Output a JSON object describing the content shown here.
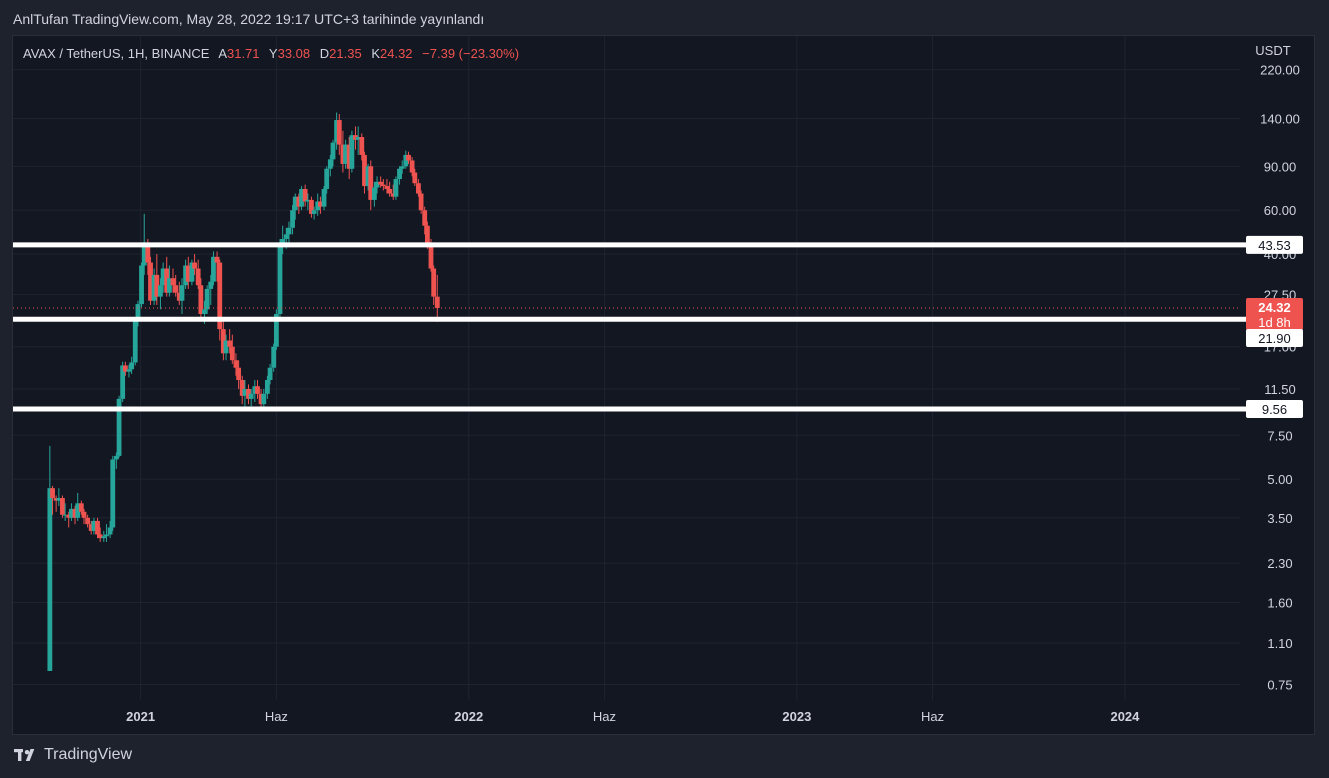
{
  "header": {
    "publish_text": "AnlTufan TradingView.com, May 28, 2022 19:17 UTC+3 tarihinde yayınlandı"
  },
  "legend": {
    "symbol": "AVAX / TetherUS, 1H, BINANCE",
    "open_label": "A",
    "open_value": "31.71",
    "high_label": "Y",
    "high_value": "33.08",
    "low_label": "D",
    "low_value": "21.35",
    "close_label": "K",
    "close_value": "24.32",
    "change": "−7.39 (−23.30%)"
  },
  "footer": {
    "brand": "TradingView"
  },
  "colors": {
    "up": "#26a69a",
    "down": "#ef5350",
    "background": "#131722",
    "grid": "#1f2330",
    "text": "#d1d4dc",
    "level_line": "#ffffff"
  },
  "chart_data": {
    "type": "candlestick",
    "currency": "USDT",
    "y_scale": "log",
    "ylim": [
      0.65,
      300
    ],
    "y_ticks": [
      "220.00",
      "140.00",
      "90.00",
      "60.00",
      "40.00",
      "27.50",
      "17.00",
      "11.50",
      "7.50",
      "5.00",
      "3.50",
      "2.30",
      "1.60",
      "1.10",
      "0.75"
    ],
    "x_ticks": [
      {
        "date": "2021-01-01",
        "label": "2021",
        "bold": true
      },
      {
        "date": "2021-06-01",
        "label": "Haz",
        "bold": false
      },
      {
        "date": "2022-01-01",
        "label": "2022",
        "bold": true
      },
      {
        "date": "2022-06-01",
        "label": "Haz",
        "bold": false
      },
      {
        "date": "2023-01-01",
        "label": "2023",
        "bold": true
      },
      {
        "date": "2023-06-01",
        "label": "Haz",
        "bold": false
      },
      {
        "date": "2024-01-01",
        "label": "2024",
        "bold": true
      }
    ],
    "xlim": [
      "2020-08-12",
      "2024-05-08"
    ],
    "horizontal_levels": [
      {
        "value": 43.53,
        "label": "43.53"
      },
      {
        "value": 21.9,
        "label": "21.90"
      },
      {
        "value": 9.56,
        "label": "9.56"
      }
    ],
    "last_price": {
      "value": 24.32,
      "label": "24.32",
      "countdown": "1d 8h"
    },
    "candles": [
      {
        "date": "2020-09-22",
        "o": 0.85,
        "h": 6.8,
        "l": 0.85,
        "c": 4.6
      },
      {
        "date": "2020-09-25",
        "o": 4.6,
        "h": 4.7,
        "l": 3.6,
        "c": 4.2
      },
      {
        "date": "2020-09-29",
        "o": 4.2,
        "h": 4.3,
        "l": 3.7,
        "c": 4.1
      },
      {
        "date": "2020-10-02",
        "o": 4.1,
        "h": 4.6,
        "l": 3.9,
        "c": 4.2
      },
      {
        "date": "2020-10-06",
        "o": 4.2,
        "h": 4.3,
        "l": 3.5,
        "c": 3.6
      },
      {
        "date": "2020-10-09",
        "o": 3.6,
        "h": 4.0,
        "l": 3.4,
        "c": 3.6
      },
      {
        "date": "2020-10-13",
        "o": 3.6,
        "h": 3.7,
        "l": 3.2,
        "c": 3.5
      },
      {
        "date": "2020-10-16",
        "o": 3.5,
        "h": 4.0,
        "l": 3.4,
        "c": 3.8
      },
      {
        "date": "2020-10-20",
        "o": 3.8,
        "h": 3.9,
        "l": 3.3,
        "c": 3.5
      },
      {
        "date": "2020-10-23",
        "o": 3.5,
        "h": 4.4,
        "l": 3.4,
        "c": 4.0
      },
      {
        "date": "2020-10-27",
        "o": 4.0,
        "h": 4.1,
        "l": 3.6,
        "c": 3.7
      },
      {
        "date": "2020-10-30",
        "o": 3.7,
        "h": 3.8,
        "l": 3.3,
        "c": 3.5
      },
      {
        "date": "2020-11-03",
        "o": 3.5,
        "h": 3.6,
        "l": 3.2,
        "c": 3.3
      },
      {
        "date": "2020-11-07",
        "o": 3.3,
        "h": 3.4,
        "l": 3.0,
        "c": 3.1
      },
      {
        "date": "2020-11-10",
        "o": 3.1,
        "h": 3.5,
        "l": 3.0,
        "c": 3.4
      },
      {
        "date": "2020-11-14",
        "o": 3.4,
        "h": 3.5,
        "l": 2.9,
        "c": 3.0
      },
      {
        "date": "2020-11-17",
        "o": 3.0,
        "h": 3.2,
        "l": 2.8,
        "c": 2.9
      },
      {
        "date": "2020-11-21",
        "o": 2.9,
        "h": 3.1,
        "l": 2.8,
        "c": 2.95
      },
      {
        "date": "2020-11-24",
        "o": 2.95,
        "h": 3.3,
        "l": 2.8,
        "c": 3.0
      },
      {
        "date": "2020-11-28",
        "o": 3.0,
        "h": 3.4,
        "l": 2.9,
        "c": 3.2
      },
      {
        "date": "2020-12-01",
        "o": 3.2,
        "h": 6.2,
        "l": 3.1,
        "c": 6.0
      },
      {
        "date": "2020-12-05",
        "o": 6.0,
        "h": 6.4,
        "l": 5.5,
        "c": 6.2
      },
      {
        "date": "2020-12-08",
        "o": 6.2,
        "h": 10.8,
        "l": 6.1,
        "c": 10.5
      },
      {
        "date": "2020-12-12",
        "o": 10.5,
        "h": 14.8,
        "l": 10.2,
        "c": 14.3
      },
      {
        "date": "2020-12-15",
        "o": 14.3,
        "h": 14.8,
        "l": 13.0,
        "c": 13.5
      },
      {
        "date": "2020-12-19",
        "o": 13.5,
        "h": 14.4,
        "l": 12.8,
        "c": 13.8
      },
      {
        "date": "2020-12-22",
        "o": 13.8,
        "h": 15.5,
        "l": 13.2,
        "c": 14.7
      },
      {
        "date": "2020-12-26",
        "o": 14.7,
        "h": 22.0,
        "l": 14.3,
        "c": 21.5
      },
      {
        "date": "2020-12-29",
        "o": 21.5,
        "h": 26.0,
        "l": 20.5,
        "c": 25.2
      },
      {
        "date": "2021-01-02",
        "o": 25.2,
        "h": 37.0,
        "l": 24.5,
        "c": 36.0
      },
      {
        "date": "2021-01-05",
        "o": 36.0,
        "h": 58.0,
        "l": 33.0,
        "c": 43.0
      },
      {
        "date": "2021-01-09",
        "o": 43.0,
        "h": 46.0,
        "l": 33.0,
        "c": 37.0
      },
      {
        "date": "2021-01-12",
        "o": 37.0,
        "h": 39.0,
        "l": 25.0,
        "c": 26.0
      },
      {
        "date": "2021-01-16",
        "o": 26.0,
        "h": 35.0,
        "l": 25.0,
        "c": 33.0
      },
      {
        "date": "2021-01-19",
        "o": 33.0,
        "h": 40.0,
        "l": 25.0,
        "c": 27.0
      },
      {
        "date": "2021-01-23",
        "o": 27.0,
        "h": 32.0,
        "l": 24.0,
        "c": 30.0
      },
      {
        "date": "2021-01-26",
        "o": 30.0,
        "h": 37.0,
        "l": 28.0,
        "c": 35.0
      },
      {
        "date": "2021-01-30",
        "o": 35.0,
        "h": 39.0,
        "l": 27.0,
        "c": 28.0
      },
      {
        "date": "2021-02-02",
        "o": 28.0,
        "h": 36.0,
        "l": 27.0,
        "c": 32.0
      },
      {
        "date": "2021-02-06",
        "o": 32.0,
        "h": 35.0,
        "l": 28.0,
        "c": 30.0
      },
      {
        "date": "2021-02-09",
        "o": 30.0,
        "h": 33.0,
        "l": 27.0,
        "c": 28.0
      },
      {
        "date": "2021-02-13",
        "o": 28.0,
        "h": 31.0,
        "l": 25.0,
        "c": 26.0
      },
      {
        "date": "2021-02-16",
        "o": 26.0,
        "h": 32.0,
        "l": 23.0,
        "c": 30.0
      },
      {
        "date": "2021-02-20",
        "o": 30.0,
        "h": 38.0,
        "l": 29.0,
        "c": 36.0
      },
      {
        "date": "2021-02-23",
        "o": 36.0,
        "h": 39.0,
        "l": 29.0,
        "c": 31.0
      },
      {
        "date": "2021-02-27",
        "o": 31.0,
        "h": 38.0,
        "l": 30.0,
        "c": 37.0
      },
      {
        "date": "2021-03-02",
        "o": 37.0,
        "h": 40.0,
        "l": 33.0,
        "c": 35.0
      },
      {
        "date": "2021-03-06",
        "o": 35.0,
        "h": 38.0,
        "l": 29.0,
        "c": 30.0
      },
      {
        "date": "2021-03-09",
        "o": 30.0,
        "h": 32.0,
        "l": 22.0,
        "c": 23.0
      },
      {
        "date": "2021-03-13",
        "o": 23.0,
        "h": 26.0,
        "l": 21.0,
        "c": 24.0
      },
      {
        "date": "2021-03-16",
        "o": 24.0,
        "h": 30.0,
        "l": 23.0,
        "c": 29.0
      },
      {
        "date": "2021-03-20",
        "o": 29.0,
        "h": 33.0,
        "l": 25.0,
        "c": 31.0
      },
      {
        "date": "2021-03-23",
        "o": 31.0,
        "h": 41.0,
        "l": 30.0,
        "c": 39.0
      },
      {
        "date": "2021-03-27",
        "o": 39.0,
        "h": 41.0,
        "l": 31.0,
        "c": 37.0
      },
      {
        "date": "2021-03-30",
        "o": 37.0,
        "h": 38.0,
        "l": 18.0,
        "c": 20.0
      },
      {
        "date": "2021-04-03",
        "o": 20.0,
        "h": 22.0,
        "l": 15.0,
        "c": 16.0
      },
      {
        "date": "2021-04-06",
        "o": 16.0,
        "h": 19.0,
        "l": 15.0,
        "c": 18.0
      },
      {
        "date": "2021-04-10",
        "o": 18.0,
        "h": 20.0,
        "l": 16.0,
        "c": 17.0
      },
      {
        "date": "2021-04-13",
        "o": 17.0,
        "h": 19.0,
        "l": 14.5,
        "c": 15.0
      },
      {
        "date": "2021-04-17",
        "o": 15.0,
        "h": 16.0,
        "l": 13.0,
        "c": 14.0
      },
      {
        "date": "2021-04-20",
        "o": 14.0,
        "h": 15.0,
        "l": 11.5,
        "c": 12.5
      },
      {
        "date": "2021-04-24",
        "o": 12.5,
        "h": 13.0,
        "l": 10.0,
        "c": 10.8
      },
      {
        "date": "2021-04-27",
        "o": 10.8,
        "h": 12.5,
        "l": 9.4,
        "c": 11.5
      },
      {
        "date": "2021-05-01",
        "o": 11.5,
        "h": 12.0,
        "l": 10.0,
        "c": 10.5
      },
      {
        "date": "2021-05-04",
        "o": 10.5,
        "h": 11.5,
        "l": 9.8,
        "c": 11.0
      },
      {
        "date": "2021-05-08",
        "o": 11.0,
        "h": 12.5,
        "l": 10.2,
        "c": 11.8
      },
      {
        "date": "2021-05-11",
        "o": 11.8,
        "h": 12.5,
        "l": 10.5,
        "c": 11.0
      },
      {
        "date": "2021-05-15",
        "o": 11.0,
        "h": 11.5,
        "l": 9.4,
        "c": 10.0
      },
      {
        "date": "2021-05-18",
        "o": 10.0,
        "h": 11.5,
        "l": 9.6,
        "c": 11.0
      },
      {
        "date": "2021-05-22",
        "o": 11.0,
        "h": 13.0,
        "l": 10.5,
        "c": 12.5
      },
      {
        "date": "2021-05-25",
        "o": 12.5,
        "h": 14.5,
        "l": 12.0,
        "c": 14.0
      },
      {
        "date": "2021-05-29",
        "o": 14.0,
        "h": 17.5,
        "l": 13.5,
        "c": 17.0
      },
      {
        "date": "2021-06-01",
        "o": 17.0,
        "h": 24.0,
        "l": 16.5,
        "c": 23.0
      },
      {
        "date": "2021-06-05",
        "o": 23.0,
        "h": 46.0,
        "l": 22.0,
        "c": 43.0
      },
      {
        "date": "2021-06-08",
        "o": 43.0,
        "h": 52.0,
        "l": 40.0,
        "c": 46.0
      },
      {
        "date": "2021-06-12",
        "o": 46.0,
        "h": 51.0,
        "l": 42.0,
        "c": 48.0
      },
      {
        "date": "2021-06-15",
        "o": 48.0,
        "h": 54.0,
        "l": 44.0,
        "c": 51.0
      },
      {
        "date": "2021-06-19",
        "o": 51.0,
        "h": 63.0,
        "l": 48.0,
        "c": 60.0
      },
      {
        "date": "2021-06-22",
        "o": 60.0,
        "h": 70.0,
        "l": 55.0,
        "c": 68.0
      },
      {
        "date": "2021-06-26",
        "o": 68.0,
        "h": 70.0,
        "l": 58.0,
        "c": 62.0
      },
      {
        "date": "2021-06-29",
        "o": 62.0,
        "h": 75.0,
        "l": 60.0,
        "c": 73.0
      },
      {
        "date": "2021-07-03",
        "o": 73.0,
        "h": 76.0,
        "l": 62.0,
        "c": 65.0
      },
      {
        "date": "2021-07-06",
        "o": 65.0,
        "h": 70.0,
        "l": 60.0,
        "c": 66.0
      },
      {
        "date": "2021-07-10",
        "o": 66.0,
        "h": 68.0,
        "l": 56.0,
        "c": 58.0
      },
      {
        "date": "2021-07-13",
        "o": 58.0,
        "h": 62.0,
        "l": 55.0,
        "c": 60.0
      },
      {
        "date": "2021-07-17",
        "o": 60.0,
        "h": 70.0,
        "l": 57.0,
        "c": 65.0
      },
      {
        "date": "2021-07-20",
        "o": 65.0,
        "h": 68.0,
        "l": 58.0,
        "c": 62.0
      },
      {
        "date": "2021-07-24",
        "o": 62.0,
        "h": 75.0,
        "l": 60.0,
        "c": 73.0
      },
      {
        "date": "2021-07-27",
        "o": 73.0,
        "h": 90.0,
        "l": 70.0,
        "c": 88.0
      },
      {
        "date": "2021-07-31",
        "o": 88.0,
        "h": 100.0,
        "l": 82.0,
        "c": 96.0
      },
      {
        "date": "2021-08-03",
        "o": 96.0,
        "h": 115.0,
        "l": 90.0,
        "c": 112.0
      },
      {
        "date": "2021-08-07",
        "o": 112.0,
        "h": 148.0,
        "l": 105.0,
        "c": 138.0
      },
      {
        "date": "2021-08-10",
        "o": 138.0,
        "h": 146.0,
        "l": 100.0,
        "c": 110.0
      },
      {
        "date": "2021-08-14",
        "o": 110.0,
        "h": 125.0,
        "l": 85.0,
        "c": 92.0
      },
      {
        "date": "2021-08-17",
        "o": 92.0,
        "h": 115.0,
        "l": 88.0,
        "c": 110.0
      },
      {
        "date": "2021-08-21",
        "o": 110.0,
        "h": 118.0,
        "l": 80.0,
        "c": 88.0
      },
      {
        "date": "2021-08-24",
        "o": 88.0,
        "h": 125.0,
        "l": 85.0,
        "c": 120.0
      },
      {
        "date": "2021-08-28",
        "o": 120.0,
        "h": 130.0,
        "l": 105.0,
        "c": 115.0
      },
      {
        "date": "2021-08-31",
        "o": 115.0,
        "h": 130.0,
        "l": 100.0,
        "c": 118.0
      },
      {
        "date": "2021-09-04",
        "o": 118.0,
        "h": 122.0,
        "l": 95.0,
        "c": 100.0
      },
      {
        "date": "2021-09-07",
        "o": 100.0,
        "h": 103.0,
        "l": 70.0,
        "c": 75.0
      },
      {
        "date": "2021-09-11",
        "o": 75.0,
        "h": 92.0,
        "l": 72.0,
        "c": 90.0
      },
      {
        "date": "2021-09-14",
        "o": 90.0,
        "h": 95.0,
        "l": 60.0,
        "c": 66.0
      },
      {
        "date": "2021-09-18",
        "o": 66.0,
        "h": 78.0,
        "l": 62.0,
        "c": 74.0
      },
      {
        "date": "2021-09-21",
        "o": 74.0,
        "h": 82.0,
        "l": 70.0,
        "c": 78.0
      },
      {
        "date": "2021-09-25",
        "o": 78.0,
        "h": 82.0,
        "l": 74.0,
        "c": 76.0
      },
      {
        "date": "2021-09-28",
        "o": 76.0,
        "h": 80.0,
        "l": 72.0,
        "c": 75.0
      },
      {
        "date": "2021-10-02",
        "o": 75.0,
        "h": 80.0,
        "l": 70.0,
        "c": 73.0
      },
      {
        "date": "2021-10-05",
        "o": 73.0,
        "h": 78.0,
        "l": 68.0,
        "c": 70.0
      },
      {
        "date": "2021-10-09",
        "o": 70.0,
        "h": 76.0,
        "l": 66.0,
        "c": 68.0
      },
      {
        "date": "2021-10-12",
        "o": 68.0,
        "h": 82.0,
        "l": 66.0,
        "c": 80.0
      },
      {
        "date": "2021-10-16",
        "o": 80.0,
        "h": 90.0,
        "l": 76.0,
        "c": 88.0
      },
      {
        "date": "2021-10-19",
        "o": 88.0,
        "h": 95.0,
        "l": 84.0,
        "c": 90.0
      },
      {
        "date": "2021-10-23",
        "o": 90.0,
        "h": 104.0,
        "l": 88.0,
        "c": 100.0
      },
      {
        "date": "2021-10-26",
        "o": 100.0,
        "h": 103.0,
        "l": 92.0,
        "c": 95.0
      },
      {
        "date": "2021-10-30",
        "o": 95.0,
        "h": 98.0,
        "l": 82.0,
        "c": 85.0
      },
      {
        "date": "2021-11-02",
        "o": 85.0,
        "h": 88.0,
        "l": 75.0,
        "c": 77.0
      },
      {
        "date": "2021-11-06",
        "o": 77.0,
        "h": 80.0,
        "l": 68.0,
        "c": 70.0
      },
      {
        "date": "2021-11-09",
        "o": 70.0,
        "h": 72.0,
        "l": 58.0,
        "c": 60.0
      },
      {
        "date": "2021-11-13",
        "o": 60.0,
        "h": 62.0,
        "l": 48.0,
        "c": 52.0
      },
      {
        "date": "2021-11-16",
        "o": 52.0,
        "h": 54.0,
        "l": 42.0,
        "c": 44.0
      },
      {
        "date": "2021-11-20",
        "o": 44.0,
        "h": 46.0,
        "l": 34.0,
        "c": 35.0
      },
      {
        "date": "2021-11-23",
        "o": 35.0,
        "h": 36.0,
        "l": 25.0,
        "c": 27.0
      },
      {
        "date": "2021-11-27",
        "o": 27.0,
        "h": 33.0,
        "l": 21.35,
        "c": 24.32
      }
    ]
  }
}
